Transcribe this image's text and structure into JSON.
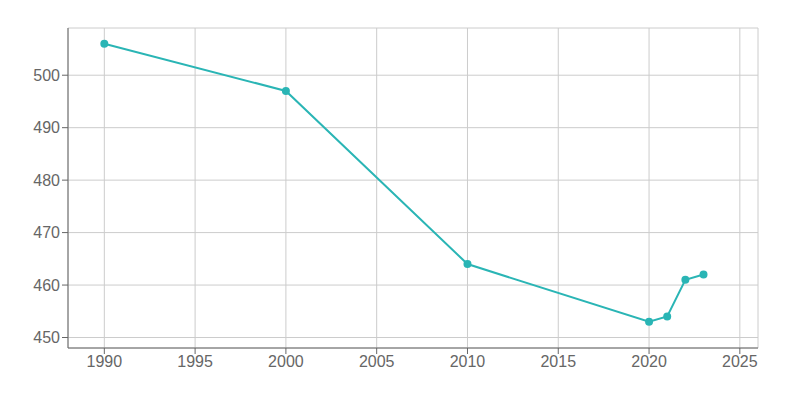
{
  "chart_data": {
    "type": "line",
    "x": [
      1990,
      2000,
      2010,
      2020,
      2021,
      2022,
      2023
    ],
    "values": [
      506,
      497,
      464,
      453,
      454,
      461,
      462
    ],
    "color": "#2ab5b5",
    "marker": "circle",
    "xlim": [
      1988,
      2026
    ],
    "ylim": [
      448,
      509
    ],
    "xticks": [
      1990,
      1995,
      2000,
      2005,
      2010,
      2015,
      2020,
      2025
    ],
    "yticks": [
      450,
      460,
      470,
      480,
      490,
      500
    ],
    "grid": true
  }
}
